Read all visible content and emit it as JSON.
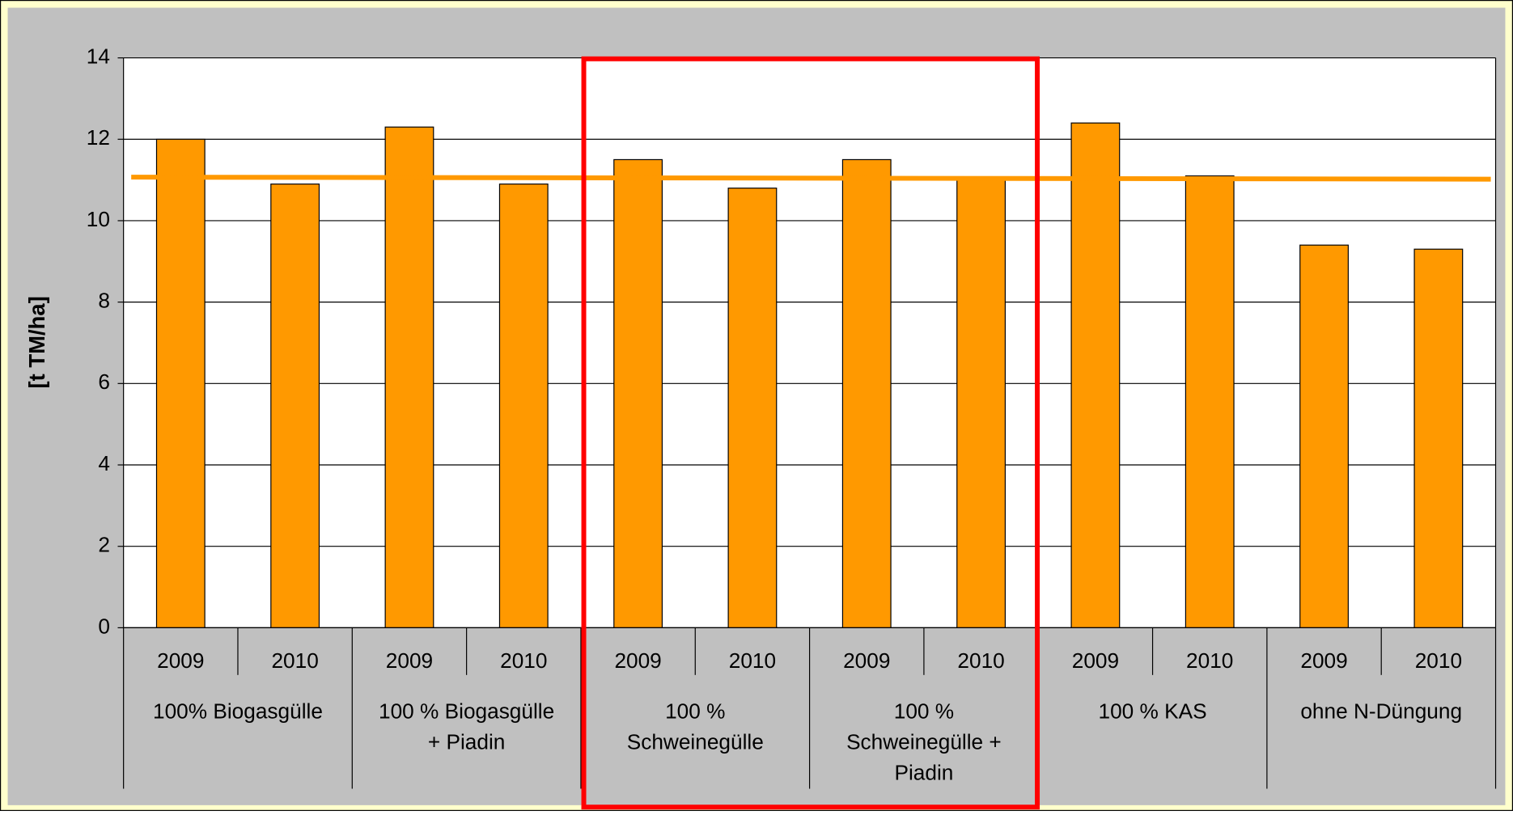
{
  "chart_data": {
    "type": "bar",
    "y_label": "[t TM/ha]",
    "categories": [
      "2009",
      "2010",
      "2009",
      "2010",
      "2009",
      "2010",
      "2009",
      "2010",
      "2009",
      "2010",
      "2009",
      "2010"
    ],
    "groups": [
      {
        "lines": [
          "100% Biogasgülle"
        ],
        "span": 2
      },
      {
        "lines": [
          "100 % Biogasgülle",
          "+ Piadin"
        ],
        "span": 2
      },
      {
        "lines": [
          "100 %",
          "Schweinegülle"
        ],
        "span": 2
      },
      {
        "lines": [
          "100 %",
          "Schweinegülle +",
          "Piadin"
        ],
        "span": 2
      },
      {
        "lines": [
          "100 % KAS"
        ],
        "span": 2
      },
      {
        "lines": [
          "ohne N-Düngung"
        ],
        "span": 2
      }
    ],
    "values": [
      12.0,
      10.9,
      12.3,
      10.9,
      11.5,
      10.8,
      11.5,
      11.0,
      12.4,
      11.1,
      9.4,
      9.3
    ],
    "color": "#ff9900",
    "trendline": {
      "color": "#ff9900",
      "values": [
        11.07,
        11.02
      ]
    },
    "ylim": [
      0,
      14
    ],
    "yticks": [
      0,
      2,
      4,
      6,
      8,
      10,
      12,
      14
    ],
    "grid": true
  }
}
